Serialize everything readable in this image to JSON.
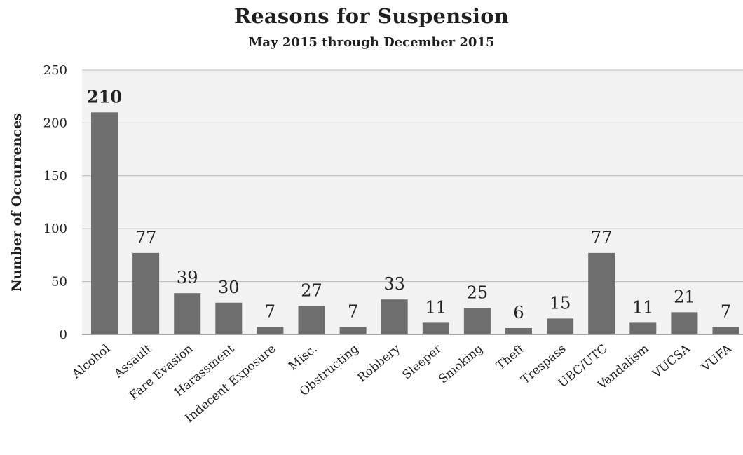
{
  "chart_data": {
    "type": "bar",
    "title": "Reasons for Suspension",
    "subtitle": "May 2015 through December 2015",
    "xlabel": "",
    "ylabel": "Number of Occurrences",
    "ylim": [
      0,
      250
    ],
    "yticks": [
      0,
      50,
      100,
      150,
      200,
      250
    ],
    "grid": true,
    "categories": [
      "Alcohol",
      "Assault",
      "Fare Evasion",
      "Harassment",
      "Indecent Exposure",
      "Misc.",
      "Obstructing",
      "Robbery",
      "Sleeper",
      "Smoking",
      "Theft",
      "Trespass",
      "UBC/UTC",
      "Vandalism",
      "VUCSA",
      "VUFA"
    ],
    "values": [
      210,
      77,
      39,
      30,
      7,
      27,
      7,
      33,
      11,
      25,
      6,
      15,
      77,
      11,
      21,
      7
    ],
    "colors": {
      "bar": "#6e6e6e",
      "bar_highlight": "#8a8a8a",
      "plot_bg": "#f2f2f2",
      "grid": "#b9b9b9",
      "axis": "#8c8c8c"
    }
  }
}
